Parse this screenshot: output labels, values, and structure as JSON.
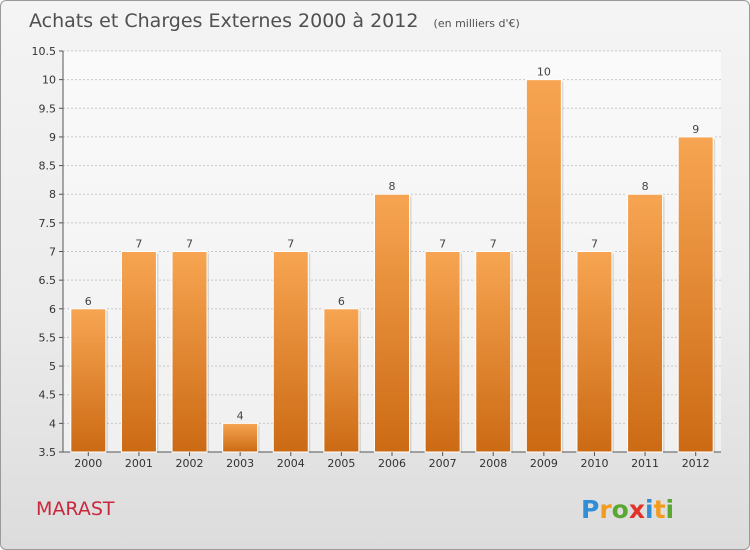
{
  "title": "Achats et Charges Externes 2000 à 2012",
  "unit_label": "(en milliers d'€)",
  "commune": "MARAST",
  "brand": {
    "letters": [
      "P",
      "r",
      "o",
      "x",
      "i",
      "t",
      "i"
    ],
    "colors": [
      "#2e8fd6",
      "#f39b1c",
      "#5aa832",
      "#e0322a",
      "#2e8fd6",
      "#f39b1c",
      "#5aa832"
    ]
  },
  "colors": {
    "bar_top": "#f7a552",
    "bar_bottom": "#cc6a14",
    "grid": "#c8c8c8"
  },
  "chart_data": {
    "type": "bar",
    "categories": [
      "2000",
      "2001",
      "2002",
      "2003",
      "2004",
      "2005",
      "2006",
      "2007",
      "2008",
      "2009",
      "2010",
      "2011",
      "2012"
    ],
    "values": [
      6,
      7,
      7,
      4,
      7,
      6,
      8,
      7,
      7,
      10,
      7,
      8,
      9
    ],
    "value_labels": [
      "6",
      "7",
      "7",
      "4",
      "7",
      "6",
      "8",
      "7",
      "7",
      "10",
      "7",
      "8",
      "9"
    ],
    "ylim": [
      3.5,
      10.5
    ],
    "yticks": [
      "3.5",
      "4",
      "4.5",
      "5",
      "5.5",
      "6",
      "6.5",
      "7",
      "7.5",
      "8",
      "8.5",
      "9",
      "9.5",
      "10",
      "10.5"
    ],
    "grid": true,
    "legend": "none"
  }
}
